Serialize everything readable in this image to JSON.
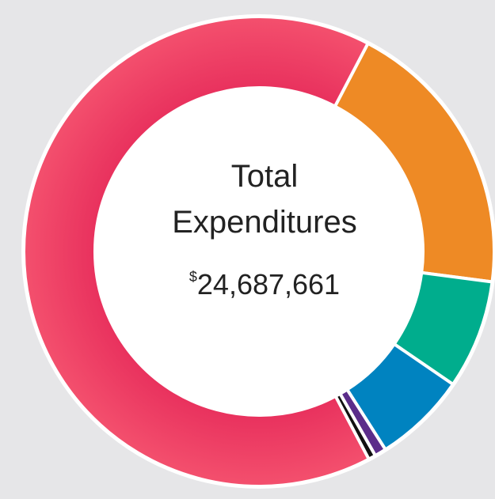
{
  "chart_data": {
    "type": "donut",
    "title_lines": [
      "Total",
      "Expenditures"
    ],
    "total": {
      "symbol": "$",
      "amount": "24,687,661"
    },
    "values": [
      19.4,
      7.5,
      6.4,
      0.8,
      0.5,
      65.4
    ],
    "colors": [
      "#ee8a25",
      "#00ad8d",
      "#0083c0",
      "#5b2d8a",
      "#111111",
      "#ec3c64"
    ]
  }
}
